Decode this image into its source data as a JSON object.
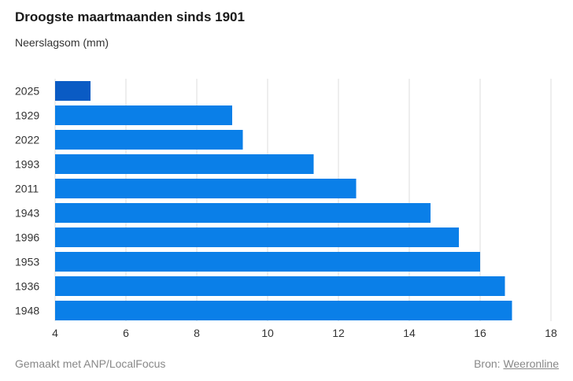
{
  "chart_data": {
    "type": "bar",
    "orientation": "horizontal",
    "title": "Droogste maartmaanden sinds 1901",
    "subtitle": "Neerslagsom (mm)",
    "categories": [
      "2025",
      "1929",
      "2022",
      "1993",
      "2011",
      "1943",
      "1996",
      "1953",
      "1936",
      "1948"
    ],
    "values": [
      5.0,
      9.0,
      9.3,
      11.3,
      12.5,
      14.6,
      15.4,
      16.0,
      16.7,
      16.9
    ],
    "xlim": [
      4,
      18
    ],
    "xticks": [
      4,
      6,
      8,
      10,
      12,
      14,
      16,
      18
    ],
    "grid": true,
    "colors": {
      "highlight": "#0a5bc4",
      "bar": "#0a7fe8",
      "grid": "#dddddd"
    },
    "highlight_category": "2025"
  },
  "footer": {
    "credit": "Gemaakt met ANP/LocalFocus",
    "source_label": "Bron:",
    "source_link": "Weeronline"
  }
}
